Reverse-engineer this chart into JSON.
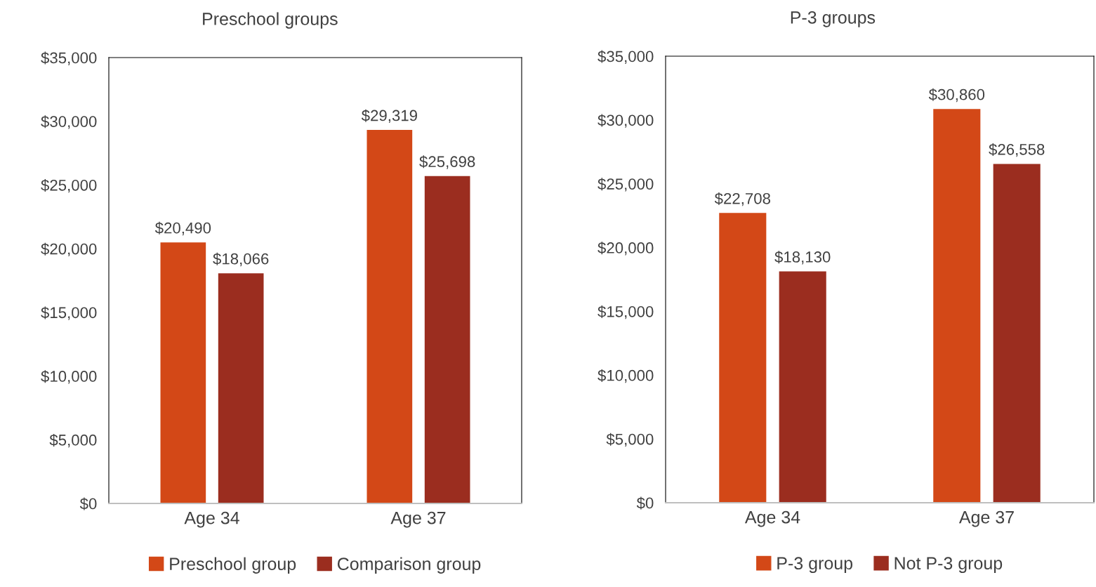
{
  "chart_data": [
    {
      "type": "bar",
      "title": "Preschool groups",
      "categories": [
        "Age 34",
        "Age 37"
      ],
      "series": [
        {
          "name": "Preschool group",
          "color": "#d34817",
          "values": [
            20490,
            29319
          ],
          "value_labels": [
            "$20,490",
            "$29,319"
          ]
        },
        {
          "name": "Comparison group",
          "color": "#9b2d1f",
          "values": [
            18066,
            25698
          ],
          "value_labels": [
            "$18,066",
            "$25,698"
          ]
        }
      ],
      "ylim": [
        0,
        35000
      ],
      "yticks": [
        {
          "value": 0,
          "label": "$0"
        },
        {
          "value": 5000,
          "label": "$5,000"
        },
        {
          "value": 10000,
          "label": "$10,000"
        },
        {
          "value": 15000,
          "label": "$15,000"
        },
        {
          "value": 20000,
          "label": "$20,000"
        },
        {
          "value": 25000,
          "label": "$25,000"
        },
        {
          "value": 30000,
          "label": "$30,000"
        },
        {
          "value": 35000,
          "label": "$35,000"
        }
      ],
      "grid": false,
      "legend": "bottom"
    },
    {
      "type": "bar",
      "title": "P-3 groups",
      "categories": [
        "Age 34",
        "Age 37"
      ],
      "series": [
        {
          "name": "P-3 group",
          "color": "#d34817",
          "values": [
            22708,
            30860
          ],
          "value_labels": [
            "$22,708",
            "$30,860"
          ]
        },
        {
          "name": "Not P-3 group",
          "color": "#9b2d1f",
          "values": [
            18130,
            26558
          ],
          "value_labels": [
            "$18,130",
            "$26,558"
          ]
        }
      ],
      "ylim": [
        0,
        35000
      ],
      "yticks": [
        {
          "value": 0,
          "label": "$0"
        },
        {
          "value": 5000,
          "label": "$5,000"
        },
        {
          "value": 10000,
          "label": "$10,000"
        },
        {
          "value": 15000,
          "label": "$15,000"
        },
        {
          "value": 20000,
          "label": "$20,000"
        },
        {
          "value": 25000,
          "label": "$25,000"
        },
        {
          "value": 30000,
          "label": "$30,000"
        },
        {
          "value": 35000,
          "label": "$35,000"
        }
      ],
      "grid": false,
      "legend": "bottom"
    }
  ]
}
